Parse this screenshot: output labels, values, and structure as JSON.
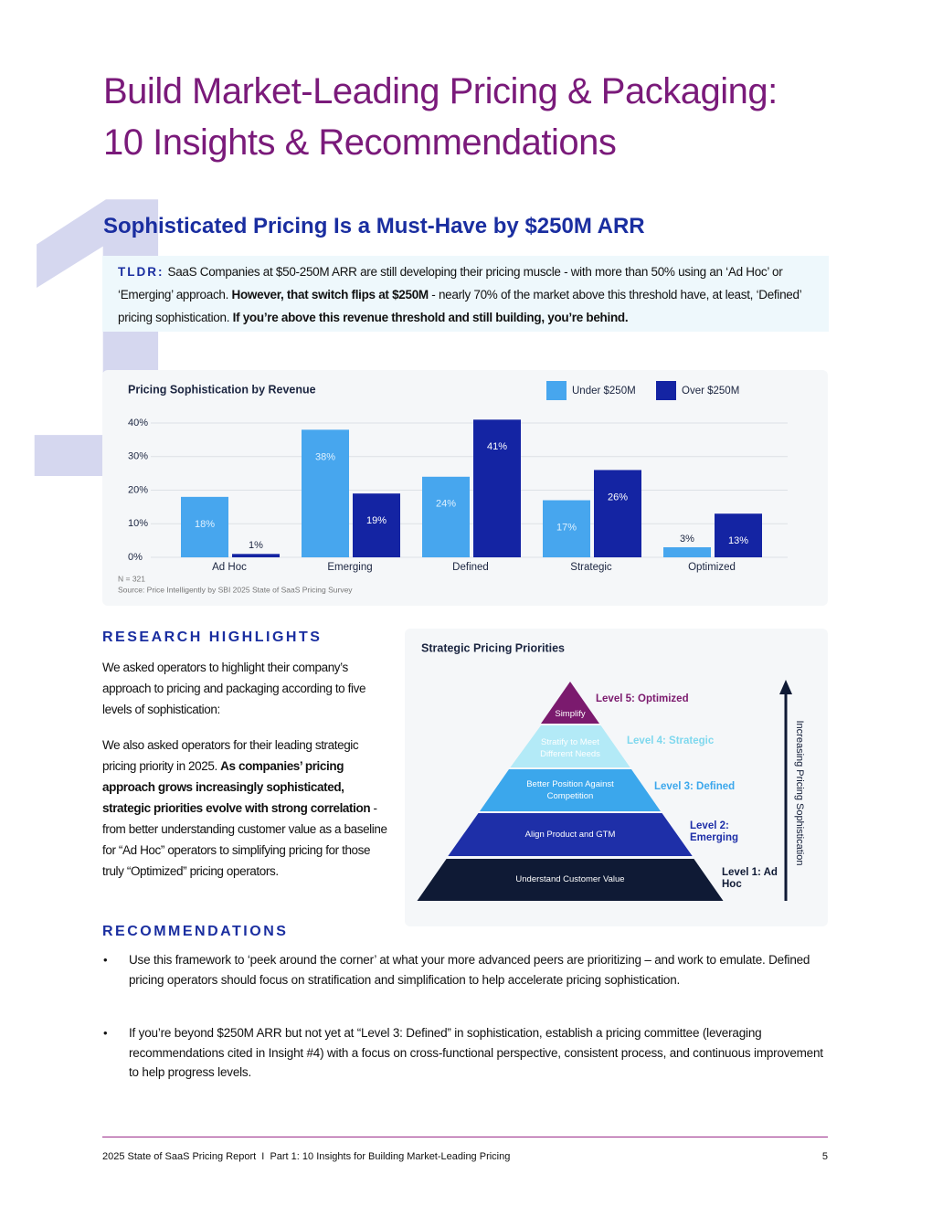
{
  "header": {
    "title_line1": "Build Market-Leading Pricing & Packaging:",
    "title_line2": "10 Insights & Recommendations"
  },
  "insight_number": "1",
  "section_title": "Sophisticated Pricing Is a Must-Have by $250M ARR",
  "tldr": {
    "label": "TLDR:",
    "text1": "SaaS Companies at $50-250M ARR are still developing their pricing muscle - with more than 50% using an ‘Ad Hoc’ or ‘Emerging’ approach. ",
    "bold1": "However, that switch flips at $250M",
    "text2": " - nearly 70% of the market above this threshold have, at least, ‘Defined’ pricing sophistication. ",
    "bold2": "If you’re above this revenue threshold and still building, you’re behind."
  },
  "chart_data": {
    "type": "bar",
    "title": "Pricing Sophistication by Revenue",
    "categories": [
      "Ad Hoc",
      "Emerging",
      "Defined",
      "Strategic",
      "Optimized"
    ],
    "series": [
      {
        "name": "Under $250M",
        "color": "#47a6ee",
        "values": [
          18,
          38,
          24,
          17,
          3
        ],
        "value_labels": [
          "18%",
          "38%",
          "24%",
          "17%",
          "3%"
        ]
      },
      {
        "name": "Over $250M",
        "color": "#1424a3",
        "values": [
          1,
          19,
          41,
          26,
          13
        ],
        "value_labels": [
          "1%",
          "19%",
          "41%",
          "26%",
          "13%"
        ]
      }
    ],
    "ylim": [
      0,
      42
    ],
    "yticks": [
      {
        "value": 0,
        "label": "0%"
      },
      {
        "value": 10,
        "label": "10%"
      },
      {
        "value": 20,
        "label": "20%"
      },
      {
        "value": 30,
        "label": "30%"
      },
      {
        "value": 40,
        "label": "40%"
      }
    ],
    "grid": true,
    "note": "N = 321",
    "source": "Source: Price Intelligently by SBI 2025 State of SaaS Pricing Survey"
  },
  "research_highlights": {
    "heading": "RESEARCH HIGHLIGHTS",
    "para1": "We asked operators to highlight their company’s approach to pricing and packaging according to five levels of sophistication:",
    "para2_text1": "We also asked operators for their leading strategic pricing priority in 2025. ",
    "para2_bold": "As companies’ pricing approach grows increasingly sophisticated, strategic priorities evolve with strong correlation",
    "para2_text2": " - from better understanding customer value as a baseline for “Ad Hoc” operators to simplifying pricing for those truly “Optimized” pricing operators."
  },
  "pyramid": {
    "title": "Strategic Pricing Priorities",
    "axis_label": "Increasing Pricing Sophistication",
    "levels": [
      {
        "inner": "Simplify",
        "label": "Level 5: Optimized"
      },
      {
        "inner": "Stratify to Meet Different Needs",
        "label": "Level 4: Strategic"
      },
      {
        "inner": "Better Position Against Competition",
        "label": "Level 3: Defined"
      },
      {
        "inner": "Align Product and GTM",
        "label": "Level 2: Emerging"
      },
      {
        "inner": "Understand Customer Value",
        "label": "Level 1: Ad Hoc"
      }
    ]
  },
  "recommendations": {
    "heading": "RECOMMENDATIONS",
    "items": [
      "Use this framework to ‘peek around the corner’ at what your more advanced peers are prioritizing – and work to emulate. Defined pricing operators should focus on stratification and simplification to help accelerate pricing sophistication.",
      "If you’re beyond $250M ARR but not yet at “Level 3: Defined” in sophistication, establish a pricing committee (leveraging recommendations cited in Insight #4) with a focus on cross-functional perspective, consistent process, and continuous improvement to help progress levels."
    ]
  },
  "footer": {
    "text": "2025 State of SaaS Pricing Report  I  Part 1: 10 Insights for Building Market-Leading Pricing",
    "page": "5"
  }
}
